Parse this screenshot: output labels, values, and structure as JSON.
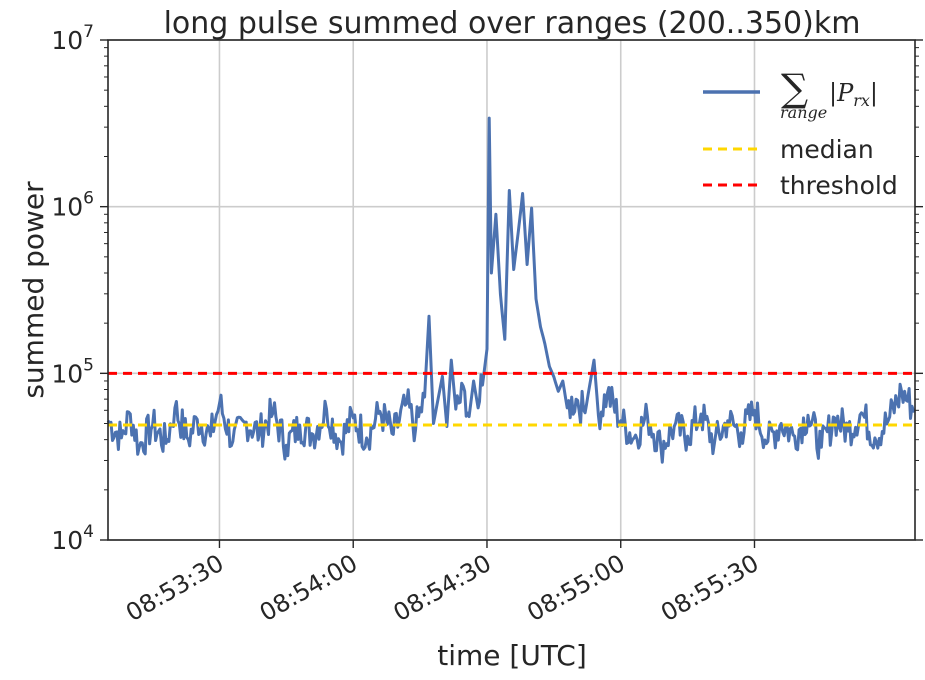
{
  "chart_data": {
    "type": "line",
    "title": "long pulse summed over ranges (200..350)km",
    "xlabel": "time [UTC]",
    "ylabel": "summed power",
    "yscale": "log",
    "ylim": [
      10000,
      10000000
    ],
    "xlim": [
      "08:53:05",
      "08:56:06"
    ],
    "x_ticks": [
      "08:53:30",
      "08:54:00",
      "08:54:30",
      "08:55:00",
      "08:55:30"
    ],
    "y_ticks": [
      {
        "value": 10000,
        "base": "10",
        "exp": "4"
      },
      {
        "value": 100000,
        "base": "10",
        "exp": "5"
      },
      {
        "value": 1000000,
        "base": "10",
        "exp": "6"
      },
      {
        "value": 10000000,
        "base": "10",
        "exp": "7"
      }
    ],
    "grid": true,
    "legend_position": "top-right",
    "series": [
      {
        "name": "∑|P_rx| (range)",
        "color": "#4c72b0",
        "style": "solid",
        "points": [
          [
            "08:53:05",
            52000
          ],
          [
            "08:53:08",
            41000
          ],
          [
            "08:53:10",
            57000
          ],
          [
            "08:53:12",
            36000
          ],
          [
            "08:53:15",
            49000
          ],
          [
            "08:53:18",
            38000
          ],
          [
            "08:53:20",
            62000
          ],
          [
            "08:53:23",
            40000
          ],
          [
            "08:53:25",
            53000
          ],
          [
            "08:53:28",
            42000
          ],
          [
            "08:53:30",
            66000
          ],
          [
            "08:53:33",
            39000
          ],
          [
            "08:53:36",
            51000
          ],
          [
            "08:53:39",
            44000
          ],
          [
            "08:53:42",
            58000
          ],
          [
            "08:53:45",
            37000
          ],
          [
            "08:53:48",
            49000
          ],
          [
            "08:53:51",
            43000
          ],
          [
            "08:53:54",
            61000
          ],
          [
            "08:53:57",
            39000
          ],
          [
            "08:54:00",
            54000
          ],
          [
            "08:54:03",
            41000
          ],
          [
            "08:54:06",
            59000
          ],
          [
            "08:54:09",
            43000
          ],
          [
            "08:54:12",
            66000
          ],
          [
            "08:54:14",
            46000
          ],
          [
            "08:54:16",
            72000
          ],
          [
            "08:54:17",
            220000
          ],
          [
            "08:54:18",
            50000
          ],
          [
            "08:54:20",
            96000
          ],
          [
            "08:54:21",
            48000
          ],
          [
            "08:54:22",
            120000
          ],
          [
            "08:54:23",
            61000
          ],
          [
            "08:54:25",
            78000
          ],
          [
            "08:54:26",
            55000
          ],
          [
            "08:54:27",
            90000
          ],
          [
            "08:54:28",
            62000
          ],
          [
            "08:54:29",
            85000
          ],
          [
            "08:54:30",
            140000
          ],
          [
            "08:54:30.5",
            3400000
          ],
          [
            "08:54:31",
            400000
          ],
          [
            "08:54:32",
            900000
          ],
          [
            "08:54:33",
            300000
          ],
          [
            "08:54:34",
            160000
          ],
          [
            "08:54:35",
            1250000
          ],
          [
            "08:54:36",
            420000
          ],
          [
            "08:54:37",
            700000
          ],
          [
            "08:54:38",
            1200000
          ],
          [
            "08:54:39",
            450000
          ],
          [
            "08:54:40",
            980000
          ],
          [
            "08:54:41",
            280000
          ],
          [
            "08:54:42",
            190000
          ],
          [
            "08:54:43",
            150000
          ],
          [
            "08:54:44",
            110000
          ],
          [
            "08:54:45",
            95000
          ],
          [
            "08:54:46",
            78000
          ],
          [
            "08:54:47",
            90000
          ],
          [
            "08:54:48",
            62000
          ],
          [
            "08:54:50",
            70000
          ],
          [
            "08:54:52",
            58000
          ],
          [
            "08:54:54",
            120000
          ],
          [
            "08:54:55",
            56000
          ],
          [
            "08:54:57",
            76000
          ],
          [
            "08:55:00",
            52000
          ],
          [
            "08:55:03",
            41000
          ],
          [
            "08:55:06",
            55000
          ],
          [
            "08:55:09",
            36000
          ],
          [
            "08:55:12",
            48000
          ],
          [
            "08:55:15",
            42000
          ],
          [
            "08:55:18",
            57000
          ],
          [
            "08:55:21",
            38000
          ],
          [
            "08:55:24",
            52000
          ],
          [
            "08:55:27",
            44000
          ],
          [
            "08:55:30",
            60000
          ],
          [
            "08:55:33",
            39000
          ],
          [
            "08:55:36",
            50000
          ],
          [
            "08:55:39",
            42000
          ],
          [
            "08:55:42",
            56000
          ],
          [
            "08:55:45",
            36000
          ],
          [
            "08:55:48",
            54000
          ],
          [
            "08:55:51",
            45000
          ],
          [
            "08:55:54",
            58000
          ],
          [
            "08:55:57",
            41000
          ],
          [
            "08:56:00",
            52000
          ],
          [
            "08:56:03",
            78000
          ],
          [
            "08:56:06",
            60000
          ]
        ]
      },
      {
        "name": "median",
        "color": "#ffd700",
        "style": "dashed",
        "y": 49000
      },
      {
        "name": "threshold",
        "color": "#ff0000",
        "style": "dashed",
        "y": 100000
      }
    ]
  },
  "legend": {
    "sum_symbol": "∑",
    "sum_expr": "|P",
    "sum_sub": "rx",
    "sum_close": "|",
    "sum_range": "range",
    "median": "median",
    "threshold": "threshold"
  }
}
